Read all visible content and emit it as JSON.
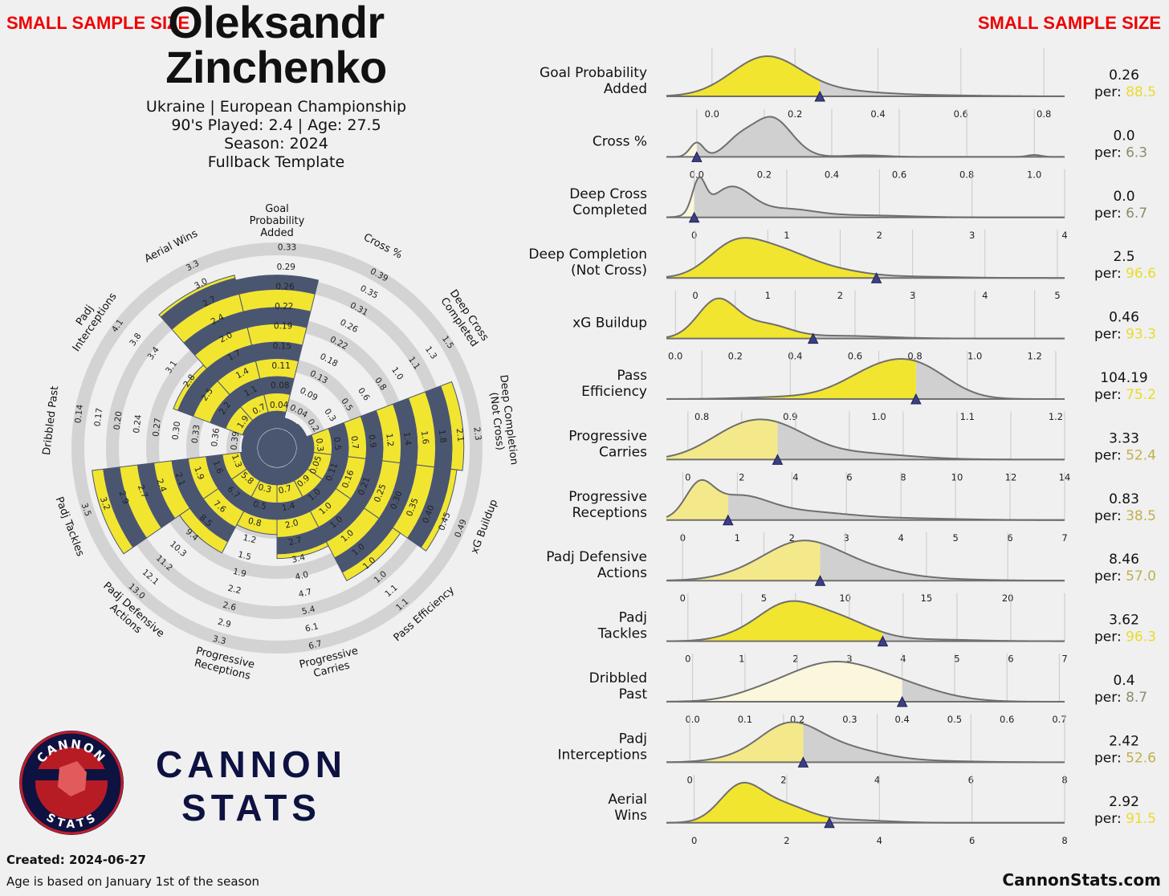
{
  "header": {
    "warning": "SMALL SAMPLE SIZE",
    "name_line1": "Oleksandr",
    "name_line2": "Zinchenko",
    "info_line1": "Ukraine | European Championship",
    "info_line2": "90's Played: 2.4 | Age: 27.5",
    "info_line3": "Season: 2024",
    "info_line4": "Fullback Template"
  },
  "footer": {
    "created": "Created: 2024-06-27",
    "age_note": "Age is based on January 1st of the season",
    "site": "CannonStats.com",
    "brand_line1": "CANNON",
    "brand_line2": "STATS",
    "logo_top": "CANNON",
    "logo_bottom": "STATS"
  },
  "colors": {
    "background": "#f0f0f0",
    "highlight": "#f2e530",
    "navy": "#4a5670",
    "ring": "#d3d3d3",
    "marker": "#3d3f86",
    "brand": "#0e1241",
    "warning": "#ee0000",
    "per_high": "#e8dc2a",
    "per_mid": "#bfb04e",
    "per_low": "#8c8c6e"
  },
  "chart_data": [
    {
      "type": "radar",
      "metrics": [
        {
          "label": "Goal\nProbability\nAdded",
          "value": 0.26,
          "percentile": 88.5,
          "ticks": [
            "0.04",
            "0.08",
            "0.11",
            "0.15",
            "0.19",
            "0.22",
            "0.26",
            "0.29",
            "0.33"
          ]
        },
        {
          "label": "Cross %",
          "value": 0.0,
          "percentile": 6.3,
          "ticks": [
            "0.04",
            "0.09",
            "0.13",
            "0.18",
            "0.22",
            "0.26",
            "0.31",
            "0.35",
            "0.39"
          ]
        },
        {
          "label": "Deep Cross\nCompleted",
          "value": 0.0,
          "percentile": 6.7,
          "ticks": [
            "0.2",
            "0.3",
            "0.5",
            "0.6",
            "0.8",
            "1.0",
            "1.1",
            "1.3",
            "1.5"
          ]
        },
        {
          "label": "Deep Completion\n(Not Cross)",
          "value": 2.5,
          "percentile": 96.6,
          "ticks": [
            "0.3",
            "0.5",
            "0.7",
            "0.9",
            "1.2",
            "1.4",
            "1.6",
            "1.8",
            "2.1",
            "2.3"
          ]
        },
        {
          "label": "xG Buildup",
          "value": 0.46,
          "percentile": 93.3,
          "ticks": [
            "0.05",
            "0.11",
            "0.16",
            "0.21",
            "0.25",
            "0.30",
            "0.35",
            "0.40",
            "0.45",
            "0.49"
          ]
        },
        {
          "label": "Pass Efficiency",
          "value": 104.19,
          "percentile": 75.2,
          "ticks": [
            "0.9",
            "1.0",
            "1.0",
            "1.0",
            "1.0",
            "1.0",
            "1.0",
            "1.0",
            "1.1",
            "1.1"
          ]
        },
        {
          "label": "Progressive\nCarries",
          "value": 3.33,
          "percentile": 52.4,
          "ticks": [
            "0.7",
            "1.4",
            "2.0",
            "2.7",
            "3.4",
            "4.0",
            "4.7",
            "5.4",
            "6.1",
            "6.7"
          ]
        },
        {
          "label": "Progressive\nReceptions",
          "value": 0.83,
          "percentile": 38.5,
          "ticks": [
            "0.3",
            "0.5",
            "0.8",
            "1.2",
            "1.5",
            "1.9",
            "2.2",
            "2.6",
            "2.9",
            "3.3"
          ]
        },
        {
          "label": "Padj Defensive\nActions",
          "value": 8.46,
          "percentile": 57.0,
          "ticks": [
            "5.8",
            "6.7",
            "7.6",
            "8.5",
            "9.4",
            "10.3",
            "11.2",
            "12.1",
            "13.0"
          ]
        },
        {
          "label": "Padj Tackles",
          "value": 3.62,
          "percentile": 96.3,
          "ticks": [
            "1.3",
            "1.6",
            "1.9",
            "2.1",
            "2.4",
            "2.7",
            "2.9",
            "3.2",
            "3.5"
          ]
        },
        {
          "label": "Dribbled Past",
          "value": 0.4,
          "percentile": 8.7,
          "ticks": [
            "0.39",
            "0.36",
            "0.33",
            "0.30",
            "0.27",
            "0.24",
            "0.20",
            "0.17",
            "0.14"
          ]
        },
        {
          "label": "Padj\nInterceptions",
          "value": 2.42,
          "percentile": 52.6,
          "ticks": [
            "1.9",
            "2.2",
            "2.5",
            "2.8",
            "3.1",
            "3.4",
            "3.8",
            "4.1"
          ]
        },
        {
          "label": "Aerial Wins",
          "value": 2.92,
          "percentile": 91.5,
          "ticks": [
            "0.7",
            "1.1",
            "1.4",
            "1.7",
            "2.0",
            "2.4",
            "2.7",
            "3.0",
            "3.3"
          ]
        }
      ]
    },
    {
      "type": "density",
      "rows": [
        {
          "label": "Goal Probability\nAdded",
          "value": "0.26",
          "per": "88.5",
          "tier": "high",
          "xlim": [
            -0.11,
            0.85
          ],
          "ticks": [
            "0.0",
            "0.2",
            "0.4",
            "0.6",
            "0.8"
          ],
          "tick_values": [
            0,
            0.2,
            0.4,
            0.6,
            0.8
          ],
          "marker": 0.26,
          "peaks": [
            [
              0.13,
              0.083,
              1
            ],
            [
              0.3,
              0.1,
              0.12
            ],
            [
              0.5,
              0.14,
              0.03
            ]
          ]
        },
        {
          "label": "Cross %",
          "value": "0.0",
          "per": "6.3",
          "tier": "low",
          "xlim": [
            -0.09,
            1.09
          ],
          "ticks": [
            "0.0",
            "0.2",
            "0.4",
            "0.6",
            "0.8",
            "1.0"
          ],
          "tick_values": [
            0,
            0.2,
            0.4,
            0.6,
            0.8,
            1.0
          ],
          "marker": 0.0,
          "peaks": [
            [
              0.0,
              0.02,
              0.36
            ],
            [
              0.22,
              0.06,
              1
            ],
            [
              0.12,
              0.04,
              0.32
            ],
            [
              0.5,
              0.06,
              0.04
            ],
            [
              1.0,
              0.02,
              0.05
            ]
          ]
        },
        {
          "label": "Deep Cross\nCompleted",
          "value": "0.0",
          "per": "6.7",
          "tier": "low",
          "xlim": [
            -0.3,
            4.0
          ],
          "ticks": [
            "0",
            "1",
            "2",
            "3",
            "4"
          ],
          "tick_values": [
            0,
            1,
            2,
            3,
            4
          ],
          "marker": 0.0,
          "peaks": [
            [
              0.05,
              0.07,
              0.9
            ],
            [
              0.4,
              0.22,
              0.85
            ],
            [
              1.0,
              0.3,
              0.22
            ],
            [
              1.8,
              0.5,
              0.06
            ]
          ]
        },
        {
          "label": "Deep Completion\n(Not Cross)",
          "value": "2.5",
          "per": "96.6",
          "tier": "high",
          "xlim": [
            -0.4,
            5.1
          ],
          "ticks": [
            "0",
            "1",
            "2",
            "3",
            "4",
            "5"
          ],
          "tick_values": [
            0,
            1,
            2,
            3,
            4,
            5
          ],
          "marker": 2.5,
          "peaks": [
            [
              0.5,
              0.35,
              0.82
            ],
            [
              1.1,
              0.45,
              0.8
            ],
            [
              1.9,
              0.45,
              0.2
            ],
            [
              3.0,
              0.6,
              0.04
            ]
          ]
        },
        {
          "label": "xG Buildup",
          "value": "0.46",
          "per": "93.3",
          "tier": "high",
          "xlim": [
            -0.03,
            1.3
          ],
          "ticks": [
            "0.0",
            "0.2",
            "0.4",
            "0.6",
            "0.8",
            "1.0",
            "1.2"
          ],
          "tick_values": [
            0,
            0.2,
            0.4,
            0.6,
            0.8,
            1.0,
            1.2
          ],
          "marker": 0.46,
          "peaks": [
            [
              0.14,
              0.065,
              1
            ],
            [
              0.3,
              0.08,
              0.35
            ],
            [
              0.55,
              0.15,
              0.07
            ]
          ]
        },
        {
          "label": "Pass\nEfficiency",
          "value": "104.19",
          "per": "75.2",
          "tier": "high",
          "xlim": [
            0.76,
            1.21
          ],
          "ticks": [
            "0.8",
            "0.9",
            "1.0",
            "1.1",
            "1.2"
          ],
          "tick_values": [
            0.8,
            0.9,
            1.0,
            1.1,
            1.2
          ],
          "marker": 1.042,
          "peaks": [
            [
              1.0,
              0.04,
              0.78
            ],
            [
              1.05,
              0.035,
              0.65
            ],
            [
              0.9,
              0.05,
              0.06
            ]
          ]
        },
        {
          "label": "Progressive\nCarries",
          "value": "3.33",
          "per": "52.4",
          "tier": "mid",
          "xlim": [
            -0.8,
            14.0
          ],
          "ticks": [
            "0",
            "2",
            "4",
            "6",
            "8",
            "10",
            "12",
            "14"
          ],
          "tick_values": [
            0,
            2,
            4,
            6,
            8,
            10,
            12,
            14
          ],
          "marker": 3.33,
          "peaks": [
            [
              2.0,
              1.3,
              0.85
            ],
            [
              3.6,
              1.2,
              0.55
            ],
            [
              6.0,
              2.0,
              0.2
            ]
          ]
        },
        {
          "label": "Progressive\nReceptions",
          "value": "0.83",
          "per": "38.5",
          "tier": "mid",
          "xlim": [
            -0.3,
            7.0
          ],
          "ticks": [
            "0",
            "1",
            "2",
            "3",
            "4",
            "5",
            "6",
            "7"
          ],
          "tick_values": [
            0,
            1,
            2,
            3,
            4,
            5,
            6,
            7
          ],
          "marker": 0.83,
          "peaks": [
            [
              0.3,
              0.25,
              0.82
            ],
            [
              1.0,
              0.55,
              0.62
            ],
            [
              2.2,
              0.8,
              0.22
            ],
            [
              4.0,
              1.0,
              0.05
            ]
          ]
        },
        {
          "label": "Padj Defensive\nActions",
          "value": "8.46",
          "per": "57.0",
          "tier": "mid",
          "xlim": [
            -1.0,
            23.5
          ],
          "ticks": [
            "0",
            "5",
            "10",
            "15",
            "20"
          ],
          "tick_values": [
            0,
            5,
            10,
            15,
            20
          ],
          "marker": 8.46,
          "peaks": [
            [
              7.2,
              2.2,
              0.85
            ],
            [
              10.5,
              2.5,
              0.32
            ],
            [
              4.0,
              2.0,
              0.12
            ],
            [
              15,
              3.0,
              0.04
            ]
          ]
        },
        {
          "label": "Padj\nTackles",
          "value": "3.62",
          "per": "96.3",
          "tier": "high",
          "xlim": [
            -0.4,
            7.0
          ],
          "ticks": [
            "0",
            "1",
            "2",
            "3",
            "4",
            "5",
            "6",
            "7"
          ],
          "tick_values": [
            0,
            1,
            2,
            3,
            4,
            5,
            6,
            7
          ],
          "marker": 3.62,
          "peaks": [
            [
              1.8,
              0.55,
              0.82
            ],
            [
              2.8,
              0.6,
              0.5
            ],
            [
              0.8,
              0.4,
              0.06
            ],
            [
              4.5,
              0.8,
              0.04
            ]
          ]
        },
        {
          "label": "Dribbled\nPast",
          "value": "0.4",
          "per": "8.7",
          "tier": "low",
          "xlim": [
            -0.05,
            0.71
          ],
          "ticks": [
            "0.0",
            "0.1",
            "0.2",
            "0.3",
            "0.4",
            "0.5",
            "0.6",
            "0.7"
          ],
          "tick_values": [
            0,
            0.1,
            0.2,
            0.3,
            0.4,
            0.5,
            0.6,
            0.7
          ],
          "marker": 0.4,
          "peaks": [
            [
              0.26,
              0.09,
              0.95
            ],
            [
              0.4,
              0.08,
              0.3
            ],
            [
              0.12,
              0.05,
              0.08
            ]
          ]
        },
        {
          "label": "Padj\nInterceptions",
          "value": "2.42",
          "per": "52.6",
          "tier": "mid",
          "xlim": [
            -0.5,
            8.0
          ],
          "ticks": [
            "0",
            "2",
            "4",
            "6",
            "8"
          ],
          "tick_values": [
            0,
            2,
            4,
            6,
            8
          ],
          "marker": 2.42,
          "peaks": [
            [
              2.1,
              0.65,
              0.85
            ],
            [
              3.3,
              0.8,
              0.3
            ],
            [
              0.8,
              0.5,
              0.05
            ],
            [
              5.0,
              1.0,
              0.03
            ]
          ]
        },
        {
          "label": "Aerial\nWins",
          "value": "2.92",
          "per": "91.5",
          "tier": "high",
          "xlim": [
            -0.6,
            8.0
          ],
          "ticks": [
            "0",
            "2",
            "4",
            "6",
            "8"
          ],
          "tick_values": [
            0,
            2,
            4,
            6,
            8
          ],
          "marker": 2.92,
          "peaks": [
            [
              1.0,
              0.45,
              0.85
            ],
            [
              1.9,
              0.55,
              0.4
            ],
            [
              3.3,
              0.8,
              0.07
            ]
          ]
        }
      ]
    }
  ]
}
